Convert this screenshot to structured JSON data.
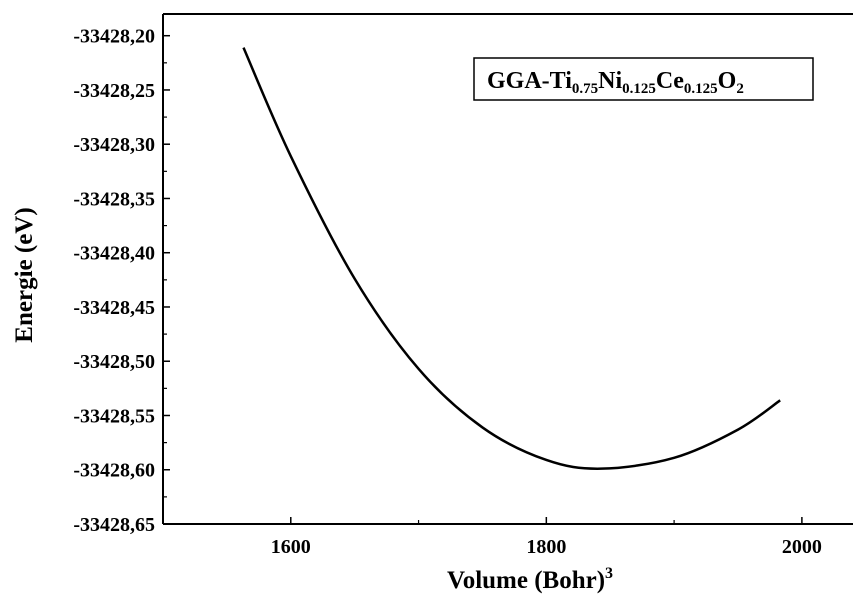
{
  "chart_data": {
    "type": "line",
    "xlabel": "Volume (Bohr)",
    "xlabel_superscript": "3",
    "ylabel": "Energie (eV)",
    "xlim": [
      1500,
      2040
    ],
    "ylim": [
      -33428.65,
      -33428.18
    ],
    "x_ticks": [
      1600,
      1800,
      2000
    ],
    "x_tick_labels": [
      "1600",
      "1800",
      "2000"
    ],
    "y_ticks": [
      -33428.2,
      -33428.25,
      -33428.3,
      -33428.35,
      -33428.4,
      -33428.45,
      -33428.5,
      -33428.55,
      -33428.6,
      -33428.65
    ],
    "y_tick_labels": [
      "-33428,20",
      "-33428,25",
      "-33428,30",
      "-33428,35",
      "-33428,40",
      "-33428,45",
      "-33428,50",
      "-33428,55",
      "-33428,60",
      "-33428,65"
    ],
    "grid": false,
    "legend_position": "top-right",
    "legend_parts": [
      {
        "text": "GGA-Ti",
        "sub": "0.75"
      },
      {
        "text": "Ni",
        "sub": "0.125"
      },
      {
        "text": "Ce",
        "sub": "0.125"
      },
      {
        "text": "O",
        "sub": "2"
      }
    ],
    "series": [
      {
        "color": "#000000",
        "x": [
          1563,
          1600,
          1650,
          1700,
          1750,
          1800,
          1843,
          1900,
          1950,
          1983
        ],
        "y": [
          -33428.211,
          -33428.311,
          -33428.424,
          -33428.507,
          -33428.561,
          -33428.591,
          -33428.599,
          -33428.589,
          -33428.563,
          -33428.536
        ]
      }
    ]
  }
}
